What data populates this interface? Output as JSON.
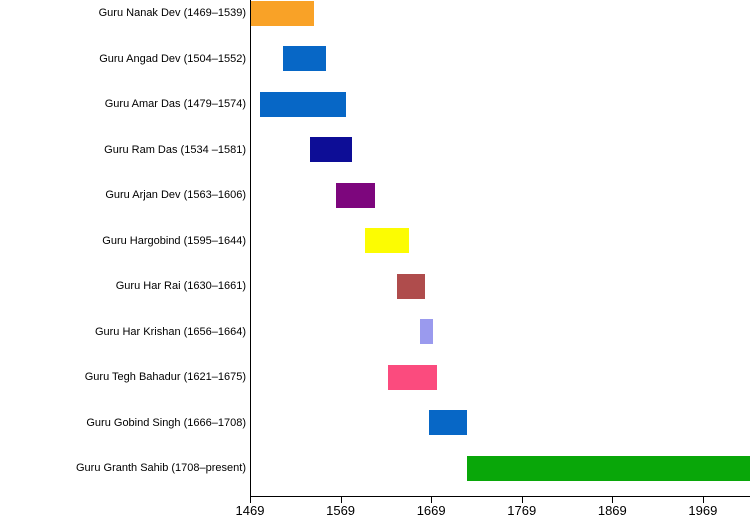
{
  "chart_data": {
    "type": "bar",
    "variant": "horizontal-timeline-gantt",
    "title": "",
    "xlabel": "",
    "ylabel": "",
    "grid": false,
    "legend": false,
    "background_color": "#ffffff",
    "axis_color": "#000000",
    "xlim": [
      1469,
      2021
    ],
    "x_ticks": [
      1469,
      1569,
      1669,
      1769,
      1869,
      1969
    ],
    "rows": [
      {
        "label": "Guru Nanak Dev (1469–1539)",
        "name": "Guru Nanak Dev",
        "start": 1469,
        "end": 1539,
        "color": "#F9A227"
      },
      {
        "label": "Guru Angad Dev (1504–1552)",
        "name": "Guru Angad Dev",
        "start": 1504,
        "end": 1552,
        "color": "#0767C6"
      },
      {
        "label": "Guru Amar Das (1479–1574)",
        "name": "Guru Amar Das",
        "start": 1479,
        "end": 1574,
        "color": "#0767C6"
      },
      {
        "label": "Guru Ram Das (1534 –1581)",
        "name": "Guru Ram Das",
        "start": 1534,
        "end": 1581,
        "color": "#0D0D96"
      },
      {
        "label": "Guru Arjan Dev (1563–1606)",
        "name": "Guru Arjan Dev",
        "start": 1563,
        "end": 1606,
        "color": "#7D067D"
      },
      {
        "label": "Guru Hargobind (1595–1644)",
        "name": "Guru Hargobind",
        "start": 1595,
        "end": 1644,
        "color": "#FCFC02"
      },
      {
        "label": "Guru Har Rai (1630–1661)",
        "name": "Guru Har Rai",
        "start": 1630,
        "end": 1661,
        "color": "#AF4C4C"
      },
      {
        "label": "Guru Har Krishan (1656–1664)",
        "name": "Guru Har Krishan",
        "start": 1656,
        "end": 1664,
        "color": "#9A9AEE"
      },
      {
        "label": "Guru Tegh Bahadur (1621–1675)",
        "name": "Guru Tegh Bahadur",
        "start": 1621,
        "end": 1675,
        "color": "#FB4B7E"
      },
      {
        "label": "Guru Gobind Singh (1666–1708)",
        "name": "Guru Gobind Singh",
        "start": 1666,
        "end": 1708,
        "color": "#0767C6"
      },
      {
        "label": "Guru Granth Sahib (1708–present)",
        "name": "Guru Granth Sahib",
        "start": 1708,
        "end": 2021,
        "end_open": true,
        "end_label": "present",
        "color": "#09A709"
      }
    ]
  }
}
